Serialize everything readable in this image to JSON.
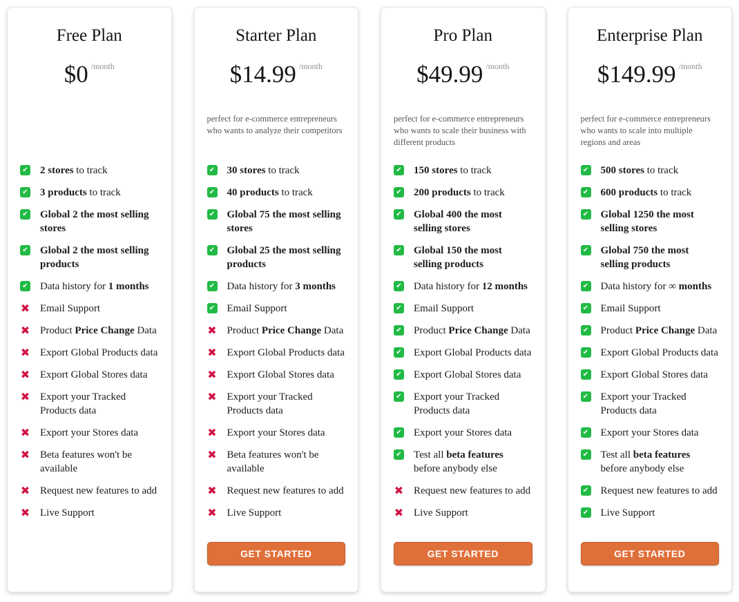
{
  "colors": {
    "check_green": "#21ba45",
    "cross_crimson": "#d01344",
    "button_orange": "#e0703a",
    "button_border": "#c75f2d",
    "card_border": "#e7e7e7",
    "period_gray": "#8f8f8f",
    "description_gray": "#555555",
    "feature_text": "#1b1c1d"
  },
  "icons": {
    "check": "✔",
    "cross": "✖"
  },
  "cta_label": "GET STARTED",
  "plans": [
    {
      "name": "Free Plan",
      "price": "$0",
      "period": "/month",
      "description": "",
      "has_button": false,
      "features": [
        {
          "included": true,
          "tall": false,
          "segments": [
            {
              "t": "2 stores",
              "b": true
            },
            {
              "t": " to track",
              "b": false
            }
          ]
        },
        {
          "included": true,
          "tall": false,
          "segments": [
            {
              "t": "3 products",
              "b": true
            },
            {
              "t": " to track",
              "b": false
            }
          ]
        },
        {
          "included": true,
          "tall": true,
          "segments": [
            {
              "t": "Global 2 the most selling stores",
              "b": true
            }
          ]
        },
        {
          "included": true,
          "tall": true,
          "segments": [
            {
              "t": "Global 2 the most selling products",
              "b": true
            }
          ]
        },
        {
          "included": true,
          "tall": false,
          "segments": [
            {
              "t": "Data history for ",
              "b": false
            },
            {
              "t": "1 months",
              "b": true
            }
          ]
        },
        {
          "included": false,
          "tall": false,
          "segments": [
            {
              "t": "Email Support",
              "b": false
            }
          ]
        },
        {
          "included": false,
          "tall": false,
          "segments": [
            {
              "t": "Product ",
              "b": false
            },
            {
              "t": "Price Change",
              "b": true
            },
            {
              "t": " Data",
              "b": false
            }
          ]
        },
        {
          "included": false,
          "tall": false,
          "segments": [
            {
              "t": "Export Global Products data",
              "b": false
            }
          ]
        },
        {
          "included": false,
          "tall": false,
          "segments": [
            {
              "t": "Export Global Stores data",
              "b": false
            }
          ]
        },
        {
          "included": false,
          "tall": true,
          "segments": [
            {
              "t": "Export your Tracked Products data",
              "b": false
            }
          ]
        },
        {
          "included": false,
          "tall": false,
          "segments": [
            {
              "t": "Export your Stores data",
              "b": false
            }
          ]
        },
        {
          "included": false,
          "tall": true,
          "segments": [
            {
              "t": "Beta features won't be available",
              "b": false
            }
          ]
        },
        {
          "included": false,
          "tall": false,
          "segments": [
            {
              "t": "Request new features to add",
              "b": false
            }
          ]
        },
        {
          "included": false,
          "tall": false,
          "segments": [
            {
              "t": "Live Support",
              "b": false
            }
          ]
        }
      ]
    },
    {
      "name": "Starter Plan",
      "price": "$14.99",
      "period": "/month",
      "description": "perfect for e-commerce entrepreneurs who wants to analyze their competitors",
      "has_button": true,
      "features": [
        {
          "included": true,
          "tall": false,
          "segments": [
            {
              "t": "30 stores",
              "b": true
            },
            {
              "t": " to track",
              "b": false
            }
          ]
        },
        {
          "included": true,
          "tall": false,
          "segments": [
            {
              "t": "40 products",
              "b": true
            },
            {
              "t": " to track",
              "b": false
            }
          ]
        },
        {
          "included": true,
          "tall": true,
          "segments": [
            {
              "t": "Global 75 the most selling stores",
              "b": true
            }
          ]
        },
        {
          "included": true,
          "tall": true,
          "segments": [
            {
              "t": "Global 25 the most selling products",
              "b": true
            }
          ]
        },
        {
          "included": true,
          "tall": false,
          "segments": [
            {
              "t": "Data history for ",
              "b": false
            },
            {
              "t": "3 months",
              "b": true
            }
          ]
        },
        {
          "included": true,
          "tall": false,
          "segments": [
            {
              "t": "Email Support",
              "b": false
            }
          ]
        },
        {
          "included": false,
          "tall": false,
          "segments": [
            {
              "t": "Product ",
              "b": false
            },
            {
              "t": "Price Change",
              "b": true
            },
            {
              "t": " Data",
              "b": false
            }
          ]
        },
        {
          "included": false,
          "tall": false,
          "segments": [
            {
              "t": "Export Global Products data",
              "b": false
            }
          ]
        },
        {
          "included": false,
          "tall": false,
          "segments": [
            {
              "t": "Export Global Stores data",
              "b": false
            }
          ]
        },
        {
          "included": false,
          "tall": true,
          "segments": [
            {
              "t": "Export your Tracked Products data",
              "b": false
            }
          ]
        },
        {
          "included": false,
          "tall": false,
          "segments": [
            {
              "t": "Export your Stores data",
              "b": false
            }
          ]
        },
        {
          "included": false,
          "tall": true,
          "segments": [
            {
              "t": "Beta features won't be available",
              "b": false
            }
          ]
        },
        {
          "included": false,
          "tall": false,
          "segments": [
            {
              "t": "Request new features to add",
              "b": false
            }
          ]
        },
        {
          "included": false,
          "tall": false,
          "segments": [
            {
              "t": "Live Support",
              "b": false
            }
          ]
        }
      ]
    },
    {
      "name": "Pro Plan",
      "price": "$49.99",
      "period": "/month",
      "description": "perfect for e-commerce entrepreneurs who wants to scale their business with different products",
      "has_button": true,
      "features": [
        {
          "included": true,
          "tall": false,
          "segments": [
            {
              "t": "150 stores",
              "b": true
            },
            {
              "t": " to track",
              "b": false
            }
          ]
        },
        {
          "included": true,
          "tall": false,
          "segments": [
            {
              "t": "200 products",
              "b": true
            },
            {
              "t": " to track",
              "b": false
            }
          ]
        },
        {
          "included": true,
          "tall": true,
          "segments": [
            {
              "t": "Global 400 the most selling stores",
              "b": true
            }
          ]
        },
        {
          "included": true,
          "tall": true,
          "segments": [
            {
              "t": "Global 150 the most selling products",
              "b": true
            }
          ]
        },
        {
          "included": true,
          "tall": false,
          "segments": [
            {
              "t": "Data history for ",
              "b": false
            },
            {
              "t": "12 months",
              "b": true
            }
          ]
        },
        {
          "included": true,
          "tall": false,
          "segments": [
            {
              "t": "Email Support",
              "b": false
            }
          ]
        },
        {
          "included": true,
          "tall": false,
          "segments": [
            {
              "t": "Product ",
              "b": false
            },
            {
              "t": "Price Change",
              "b": true
            },
            {
              "t": " Data",
              "b": false
            }
          ]
        },
        {
          "included": true,
          "tall": false,
          "segments": [
            {
              "t": "Export Global Products data",
              "b": false
            }
          ]
        },
        {
          "included": true,
          "tall": false,
          "segments": [
            {
              "t": "Export Global Stores data",
              "b": false
            }
          ]
        },
        {
          "included": true,
          "tall": true,
          "segments": [
            {
              "t": "Export your Tracked Products data",
              "b": false
            }
          ]
        },
        {
          "included": true,
          "tall": false,
          "segments": [
            {
              "t": "Export your Stores data",
              "b": false
            }
          ]
        },
        {
          "included": true,
          "tall": true,
          "segments": [
            {
              "t": "Test all ",
              "b": false
            },
            {
              "t": "beta features",
              "b": true
            },
            {
              "t": " before anybody else",
              "b": false
            }
          ]
        },
        {
          "included": false,
          "tall": false,
          "segments": [
            {
              "t": "Request new features to add",
              "b": false
            }
          ]
        },
        {
          "included": false,
          "tall": false,
          "segments": [
            {
              "t": "Live Support",
              "b": false
            }
          ]
        }
      ]
    },
    {
      "name": "Enterprise Plan",
      "price": "$149.99",
      "period": "/month",
      "description": "perfect for e-commerce entrepreneurs who wants to scale into multiple regions and areas",
      "has_button": true,
      "features": [
        {
          "included": true,
          "tall": false,
          "segments": [
            {
              "t": "500 stores",
              "b": true
            },
            {
              "t": " to track",
              "b": false
            }
          ]
        },
        {
          "included": true,
          "tall": false,
          "segments": [
            {
              "t": "600 products",
              "b": true
            },
            {
              "t": " to track",
              "b": false
            }
          ]
        },
        {
          "included": true,
          "tall": true,
          "segments": [
            {
              "t": "Global 1250 the most selling stores",
              "b": true
            }
          ]
        },
        {
          "included": true,
          "tall": true,
          "segments": [
            {
              "t": "Global 750 the most selling products",
              "b": true
            }
          ]
        },
        {
          "included": true,
          "tall": false,
          "segments": [
            {
              "t": "Data history for ",
              "b": false
            },
            {
              "t": "∞ months",
              "b": true
            }
          ]
        },
        {
          "included": true,
          "tall": false,
          "segments": [
            {
              "t": "Email Support",
              "b": false
            }
          ]
        },
        {
          "included": true,
          "tall": false,
          "segments": [
            {
              "t": "Product ",
              "b": false
            },
            {
              "t": "Price Change",
              "b": true
            },
            {
              "t": " Data",
              "b": false
            }
          ]
        },
        {
          "included": true,
          "tall": false,
          "segments": [
            {
              "t": "Export Global Products data",
              "b": false
            }
          ]
        },
        {
          "included": true,
          "tall": false,
          "segments": [
            {
              "t": "Export Global Stores data",
              "b": false
            }
          ]
        },
        {
          "included": true,
          "tall": true,
          "segments": [
            {
              "t": "Export your Tracked Products data",
              "b": false
            }
          ]
        },
        {
          "included": true,
          "tall": false,
          "segments": [
            {
              "t": "Export your Stores data",
              "b": false
            }
          ]
        },
        {
          "included": true,
          "tall": true,
          "segments": [
            {
              "t": "Test all ",
              "b": false
            },
            {
              "t": "beta features",
              "b": true
            },
            {
              "t": " before anybody else",
              "b": false
            }
          ]
        },
        {
          "included": true,
          "tall": false,
          "segments": [
            {
              "t": "Request new features to add",
              "b": false
            }
          ]
        },
        {
          "included": true,
          "tall": false,
          "segments": [
            {
              "t": "Live Support",
              "b": false
            }
          ]
        }
      ]
    }
  ]
}
